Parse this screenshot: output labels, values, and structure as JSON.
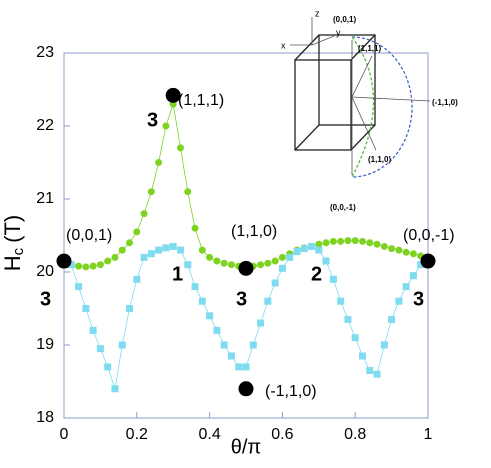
{
  "chart_data": {
    "type": "scatter",
    "xlabel": "θ/π",
    "ylabel": {
      "main": "H",
      "sub": "c",
      "unit": "(T)"
    },
    "xlim": [
      0,
      1
    ],
    "xticks": [
      0,
      0.2,
      0.4,
      0.6,
      0.8,
      1
    ],
    "ylim": [
      18,
      23
    ],
    "yticks": [
      18,
      19,
      20,
      21,
      22,
      23
    ],
    "x": [
      0,
      0.02,
      0.04,
      0.06,
      0.08,
      0.1,
      0.12,
      0.14,
      0.16,
      0.18,
      0.2,
      0.22,
      0.24,
      0.26,
      0.28,
      0.3,
      0.32,
      0.34,
      0.36,
      0.38,
      0.4,
      0.42,
      0.44,
      0.46,
      0.48,
      0.5,
      0.52,
      0.54,
      0.56,
      0.58,
      0.6,
      0.62,
      0.64,
      0.66,
      0.68,
      0.7,
      0.72,
      0.74,
      0.76,
      0.78,
      0.8,
      0.82,
      0.84,
      0.86,
      0.88,
      0.9,
      0.92,
      0.94,
      0.96,
      0.98,
      1
    ],
    "series": [
      {
        "color": "#7ed321",
        "marker": "circle",
        "values": [
          20.15,
          20.1,
          20.08,
          20.07,
          20.08,
          20.1,
          20.15,
          20.2,
          20.3,
          20.4,
          20.55,
          20.8,
          21.1,
          21.5,
          22.0,
          22.3,
          21.7,
          21.1,
          20.6,
          20.3,
          20.2,
          20.15,
          20.12,
          20.1,
          20.08,
          20.07,
          20.08,
          20.1,
          20.12,
          20.15,
          20.2,
          20.25,
          20.3,
          20.33,
          20.35,
          20.38,
          20.4,
          20.42,
          20.42,
          20.43,
          20.43,
          20.42,
          20.4,
          20.38,
          20.35,
          20.32,
          20.3,
          20.27,
          20.25,
          20.22,
          20.2
        ]
      },
      {
        "color": "#7fdcf0",
        "marker": "square",
        "values": [
          20.15,
          20.1,
          19.8,
          19.5,
          19.2,
          18.95,
          18.7,
          18.4,
          19.0,
          19.5,
          19.9,
          20.2,
          20.25,
          20.3,
          20.33,
          20.35,
          20.3,
          20.1,
          19.8,
          19.6,
          19.4,
          19.2,
          19.0,
          18.85,
          18.7,
          18.7,
          19.0,
          19.3,
          19.6,
          19.85,
          20.05,
          20.2,
          20.28,
          20.32,
          20.35,
          20.3,
          20.15,
          19.9,
          19.6,
          19.35,
          19.1,
          18.85,
          18.65,
          18.6,
          19.0,
          19.35,
          19.6,
          19.8,
          19.95,
          20.1,
          20.2
        ]
      }
    ],
    "markers": {
      "color": "#000000",
      "x": [
        0,
        0.3,
        0.5,
        0.5,
        1
      ],
      "values": [
        20.15,
        22.42,
        20.05,
        18.4,
        20.15
      ]
    },
    "annotations": [
      "(0,0,1)",
      "(1,1,1)",
      "(1,1,0)",
      "(-1,1,0)",
      "(0,0,-1)",
      "3",
      "1",
      "2",
      "3",
      "3",
      "3"
    ],
    "inset": {
      "axes": [
        "z",
        "y",
        "x"
      ],
      "labels": [
        "(0,0,1)",
        "(1,1,1)",
        "(-1,1,0)",
        "(1,1,0)",
        "(0,0,-1)"
      ]
    }
  }
}
